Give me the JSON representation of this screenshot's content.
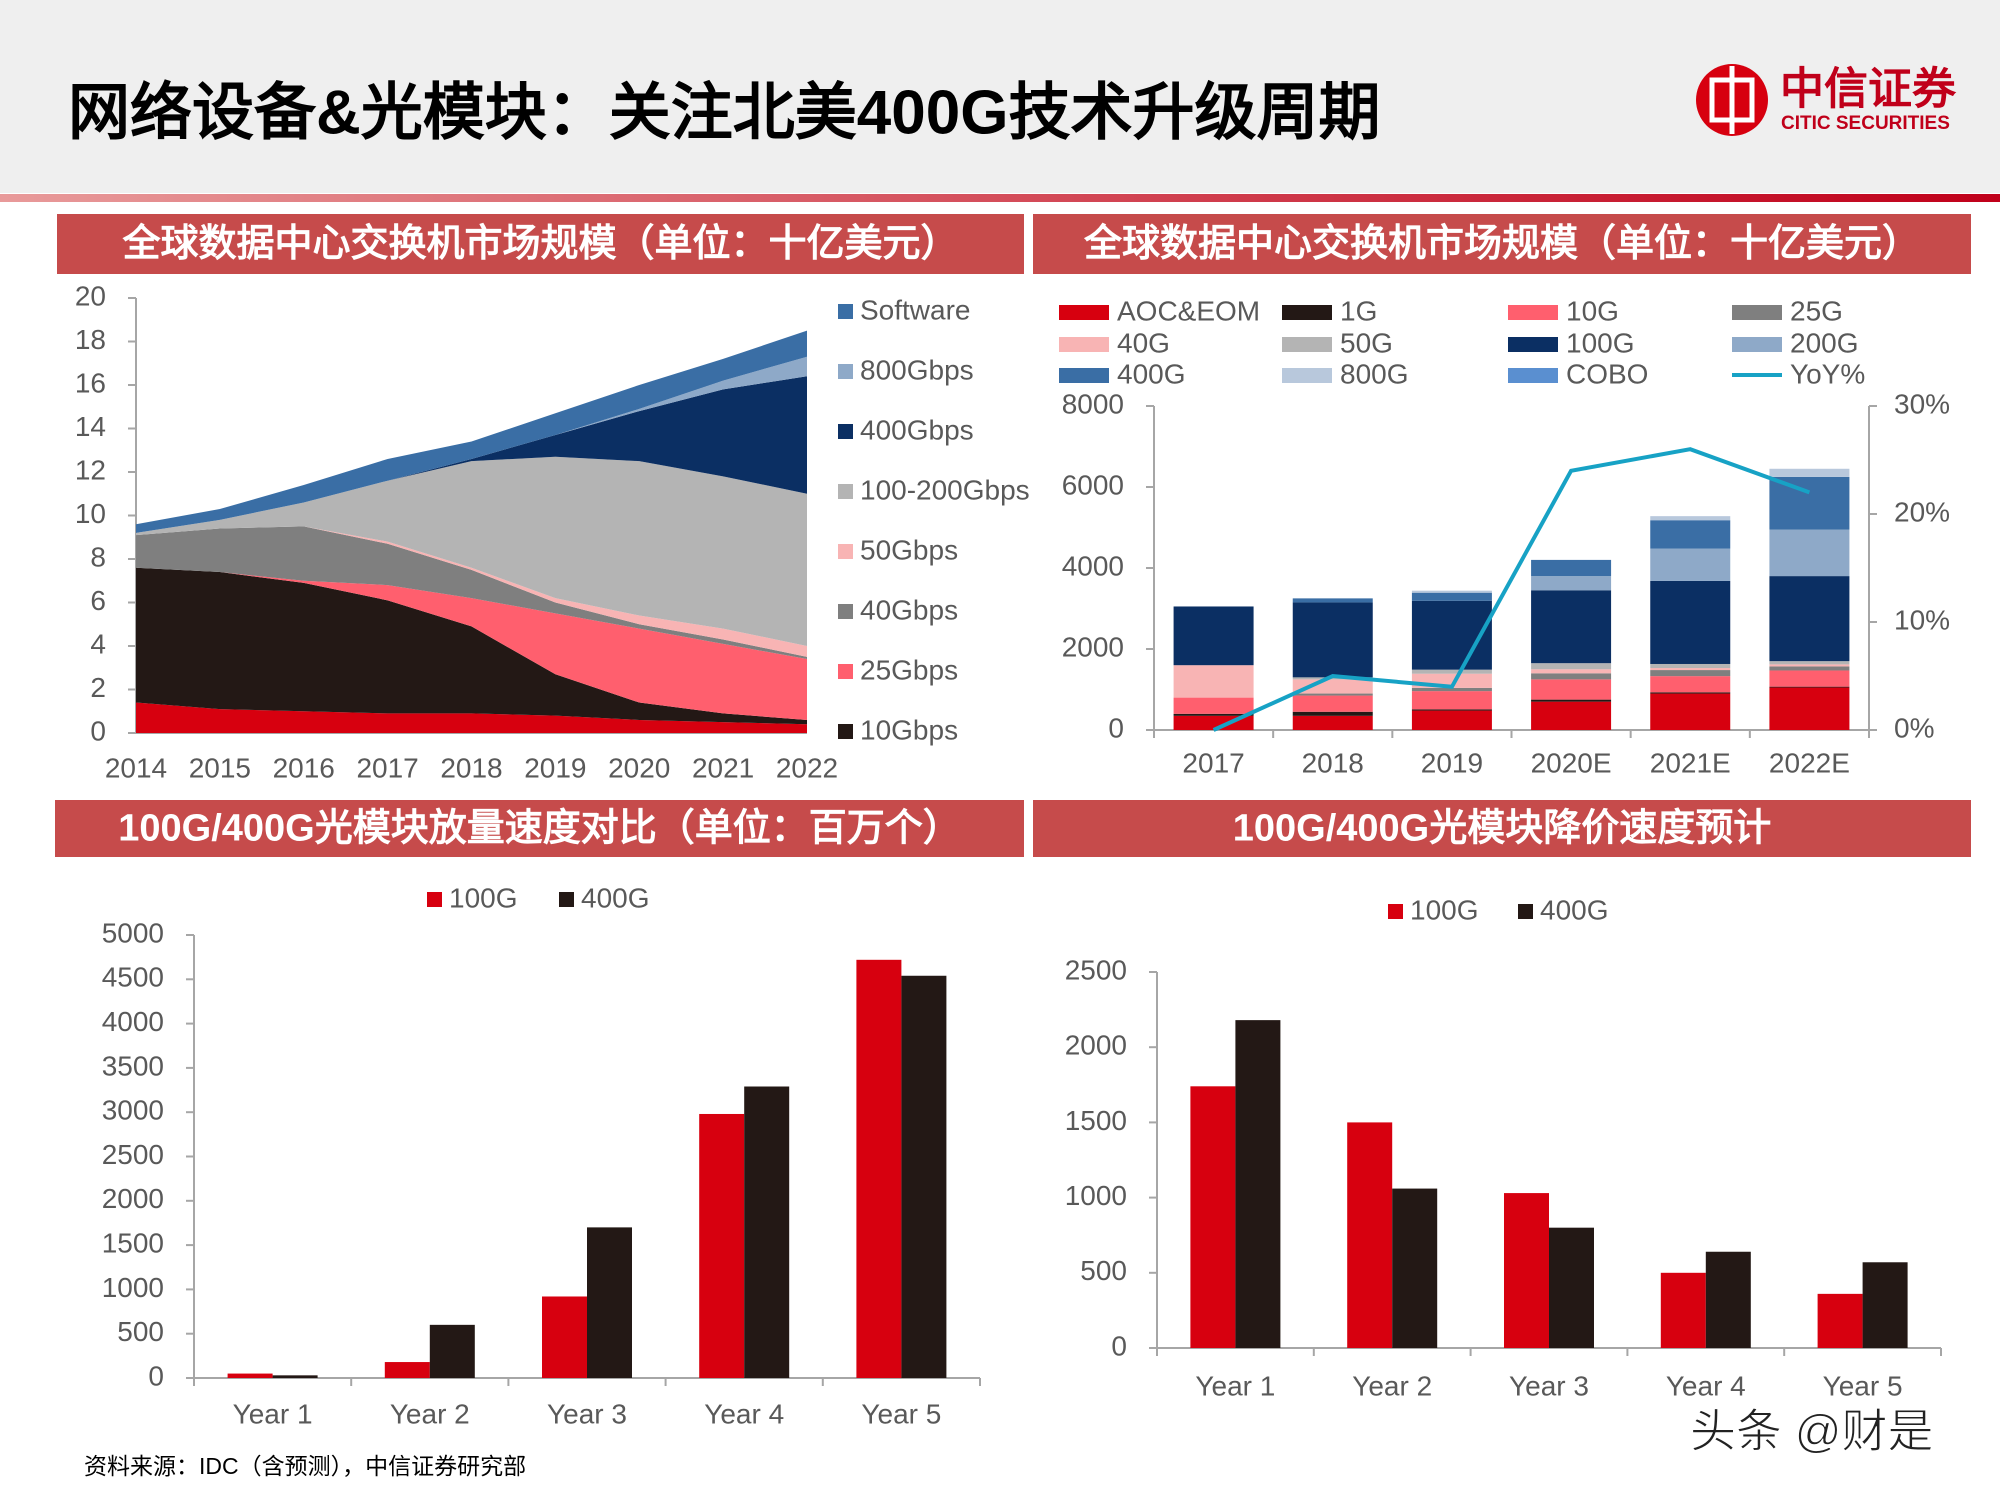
{
  "header": {
    "title": "网络设备&光模块：关注北美400G技术升级周期",
    "logo_cn": "中信证券",
    "logo_en": "CITIC SECURITIES"
  },
  "source": "资料来源：IDC（含预测），中信证券研究部",
  "watermark": "头条 @财是",
  "chart_data": [
    {
      "type": "area",
      "title": "全球数据中心交换机市场规模（单位：十亿美元）",
      "categories": [
        "2014",
        "2015",
        "2016",
        "2017",
        "2018",
        "2019",
        "2020",
        "2021",
        "2022"
      ],
      "ylim": [
        0,
        20
      ],
      "yticks": [
        0,
        2,
        4,
        6,
        8,
        10,
        12,
        14,
        16,
        18,
        20
      ],
      "series": [
        {
          "color": "#d7000f",
          "values": [
            1.4,
            1.1,
            1.0,
            0.9,
            0.9,
            0.8,
            0.6,
            0.5,
            0.4
          ]
        },
        {
          "name": "10Gbps",
          "color": "#231815",
          "values": [
            6.2,
            6.3,
            5.9,
            5.2,
            4.0,
            1.9,
            0.8,
            0.4,
            0.2
          ]
        },
        {
          "name": "25Gbps",
          "color": "#ff5f6e",
          "values": [
            0,
            0,
            0.1,
            0.7,
            1.3,
            2.8,
            3.4,
            3.2,
            2.8
          ]
        },
        {
          "name": "40Gbps",
          "color": "#7f7f7f",
          "values": [
            1.5,
            2.0,
            2.5,
            1.9,
            1.3,
            0.5,
            0.2,
            0.2,
            0.1
          ]
        },
        {
          "name": "50Gbps",
          "color": "#f8b4b4",
          "values": [
            0,
            0,
            0,
            0.1,
            0.1,
            0.2,
            0.4,
            0.5,
            0.5
          ]
        },
        {
          "name": "100-200Gbps",
          "color": "#b4b4b4",
          "values": [
            0.1,
            0.4,
            1.1,
            2.8,
            4.9,
            6.5,
            7.1,
            7.0,
            7.0
          ]
        },
        {
          "name": "400Gbps",
          "color": "#0b2f63",
          "values": [
            0,
            0,
            0,
            0,
            0.1,
            1.0,
            2.3,
            4.0,
            5.4
          ]
        },
        {
          "name": "800Gbps",
          "color": "#8ea9c8",
          "values": [
            0,
            0,
            0,
            0,
            0,
            0,
            0.1,
            0.4,
            0.9
          ]
        },
        {
          "name": "Software",
          "color": "#3a6ea5",
          "values": [
            0.4,
            0.5,
            0.8,
            1.0,
            0.8,
            1.0,
            1.1,
            1.0,
            1.2
          ]
        }
      ]
    },
    {
      "type": "combo",
      "title": "全球数据中心交换机市场规模（单位：十亿美元）",
      "categories": [
        "2017",
        "2018",
        "2019",
        "2020E",
        "2021E",
        "2022E"
      ],
      "ylim": [
        0,
        8000
      ],
      "yticks": [
        0,
        2000,
        4000,
        6000,
        8000
      ],
      "y2lim": [
        0,
        30
      ],
      "y2ticks": [
        {
          "value": 0,
          "label": "0%"
        },
        {
          "value": 10,
          "label": "10%"
        },
        {
          "value": 20,
          "label": "20%"
        },
        {
          "value": 30,
          "label": "30%"
        }
      ],
      "series": [
        {
          "name": "AOC&EOM",
          "color": "#d7000f",
          "values": [
            350,
            350,
            480,
            700,
            900,
            1050
          ]
        },
        {
          "name": "1G",
          "color": "#231815",
          "values": [
            50,
            100,
            30,
            50,
            30,
            20
          ]
        },
        {
          "name": "10G",
          "color": "#ff5f6e",
          "values": [
            400,
            400,
            450,
            500,
            400,
            400
          ]
        },
        {
          "name": "25G",
          "color": "#7f7f7f",
          "values": [
            0,
            50,
            80,
            150,
            150,
            100
          ]
        },
        {
          "name": "40G",
          "color": "#f8b4b4",
          "values": [
            800,
            350,
            350,
            100,
            50,
            50
          ]
        },
        {
          "name": "50G",
          "color": "#b4b4b4",
          "values": [
            0,
            50,
            100,
            150,
            100,
            80
          ]
        },
        {
          "name": "100G",
          "color": "#0b2f63",
          "values": [
            1450,
            1850,
            1700,
            1800,
            2050,
            2100
          ]
        },
        {
          "name": "200G",
          "color": "#8ea9c8",
          "values": [
            0,
            0,
            0,
            350,
            800,
            1150
          ]
        },
        {
          "name": "400G",
          "color": "#3a6ea5",
          "values": [
            0,
            100,
            200,
            400,
            700,
            1300
          ]
        },
        {
          "name": "800G",
          "color": "#b8c8dc",
          "values": [
            0,
            0,
            50,
            0,
            100,
            200
          ]
        },
        {
          "name": "COBO",
          "color": "#5a8fd0",
          "values": [
            0,
            0,
            0,
            0,
            0,
            0
          ]
        },
        {
          "name": "YoY%",
          "color": "#17a2c5",
          "type": "line",
          "axis": "y2",
          "values": [
            0,
            5,
            4,
            24,
            26,
            22
          ]
        }
      ]
    },
    {
      "type": "bar",
      "title": "100G/400G光模块放量速度对比（单位：百万个）",
      "categories": [
        "Year 1",
        "Year 2",
        "Year 3",
        "Year 4",
        "Year 5"
      ],
      "ylim": [
        0,
        5000
      ],
      "yticks": [
        0,
        500,
        1000,
        1500,
        2000,
        2500,
        3000,
        3500,
        4000,
        4500,
        5000
      ],
      "series": [
        {
          "name": "100G",
          "color": "#d7000f",
          "values": [
            50,
            180,
            920,
            2980,
            4720
          ]
        },
        {
          "name": "400G",
          "color": "#231815",
          "values": [
            30,
            600,
            1700,
            3290,
            4540
          ]
        }
      ]
    },
    {
      "type": "bar",
      "title": "100G/400G光模块降价速度预计",
      "categories": [
        "Year 1",
        "Year 2",
        "Year 3",
        "Year 4",
        "Year 5"
      ],
      "ylim": [
        0,
        2500
      ],
      "yticks": [
        0,
        500,
        1000,
        1500,
        2000,
        2500
      ],
      "series": [
        {
          "name": "100G",
          "color": "#d7000f",
          "values": [
            1740,
            1500,
            1030,
            500,
            360
          ]
        },
        {
          "name": "400G",
          "color": "#231815",
          "values": [
            2180,
            1060,
            800,
            640,
            570
          ]
        }
      ]
    }
  ]
}
